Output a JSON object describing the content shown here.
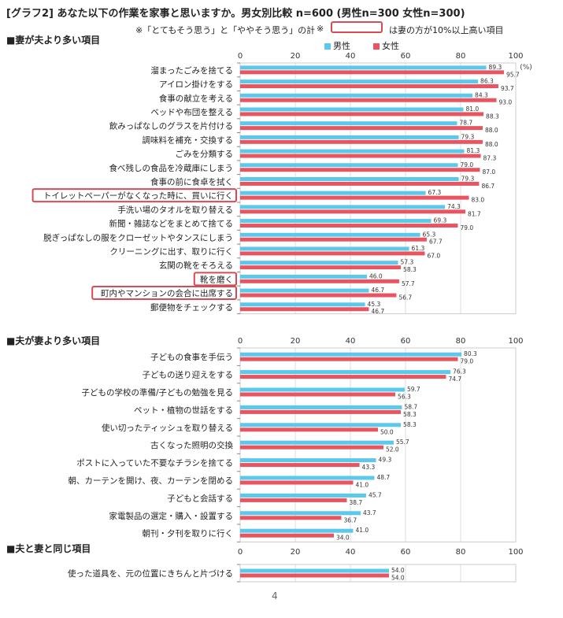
{
  "title": "[グラフ2] あなた以下の作業を家事と思いますか。男女別比較 n=600 (男性n=300 女性n=300)",
  "subtitle": "※「とてもそう思う」と「ややそう思う」の計",
  "note_mark": "※",
  "note_text": "は妻の方が10%以上高い項目",
  "legend": {
    "male": "男性",
    "female": "女性"
  },
  "unit": "(%)",
  "page_number": "4",
  "colors": {
    "male": "#5bc8ec",
    "female": "#e85560",
    "highlight": "#d94a55"
  },
  "chart_data": [
    {
      "type": "bar",
      "title": "■妻が夫より多い項目",
      "xlim": [
        0,
        100
      ],
      "ticks": [
        0,
        20,
        40,
        60,
        80,
        100
      ],
      "categories": [
        "溜まったごみを捨てる",
        "アイロン掛けをする",
        "食事の献立を考える",
        "ベッドや布団を整える",
        "飲みっぱなしのグラスを片付ける",
        "調味料を補充・交換する",
        "ごみを分類する",
        "食べ残しの食品を冷蔵庫にしまう",
        "食事の前に食卓を拭く",
        "トイレットペーパーがなくなった時に、買いに行く",
        "手洗い場のタオルを取り替える",
        "新聞・雑誌などをまとめて捨てる",
        "脱ぎっぱなしの服をクローゼットやタンスにしまう",
        "クリーニングに出す、取りに行く",
        "玄関の靴をそろえる",
        "靴を磨く",
        "町内やマンションの会合に出席する",
        "郵便物をチェックする"
      ],
      "highlighted": [
        "トイレットペーパーがなくなった時に、買いに行く",
        "靴を磨く",
        "町内やマンションの会合に出席する"
      ],
      "series": [
        {
          "name": "男性",
          "values": [
            89.3,
            86.3,
            84.3,
            81.0,
            78.7,
            79.3,
            81.3,
            79.0,
            79.3,
            67.3,
            74.3,
            69.3,
            65.3,
            61.3,
            57.3,
            46.0,
            46.7,
            45.3
          ]
        },
        {
          "name": "女性",
          "values": [
            95.7,
            93.7,
            93.0,
            88.3,
            88.0,
            88.0,
            87.3,
            87.0,
            86.7,
            83.0,
            81.7,
            79.0,
            67.7,
            67.0,
            58.3,
            57.7,
            56.7,
            46.7
          ]
        }
      ]
    },
    {
      "type": "bar",
      "title": "■夫が妻より多い項目",
      "xlim": [
        0,
        100
      ],
      "ticks": [
        0,
        20,
        40,
        60,
        80,
        100
      ],
      "categories": [
        "子どもの食事を手伝う",
        "子どもの送り迎えをする",
        "子どもの学校の準備/子どもの勉強を見る",
        "ペット・植物の世話をする",
        "使い切ったティッシュを取り替える",
        "古くなった照明の交換",
        "ポストに入っていた不要なチラシを捨てる",
        "朝、カーテンを開け、夜、カーテンを閉める",
        "子どもと会話する",
        "家電製品の選定・購入・設置する",
        "朝刊・夕刊を取りに行く"
      ],
      "highlighted": [],
      "series": [
        {
          "name": "男性",
          "values": [
            80.3,
            76.3,
            59.7,
            58.7,
            58.3,
            55.7,
            49.3,
            48.7,
            45.7,
            43.7,
            41.0
          ]
        },
        {
          "name": "女性",
          "values": [
            79.0,
            74.7,
            56.3,
            58.3,
            50.0,
            52.0,
            43.3,
            41.0,
            38.7,
            36.7,
            34.0
          ]
        }
      ]
    },
    {
      "type": "bar",
      "title": "■夫と妻と同じ項目",
      "xlim": [
        0,
        100
      ],
      "ticks": [
        0,
        20,
        40,
        60,
        80,
        100
      ],
      "categories": [
        "使った道具を、元の位置にきちんと片づける"
      ],
      "highlighted": [],
      "series": [
        {
          "name": "男性",
          "values": [
            54.0
          ]
        },
        {
          "name": "女性",
          "values": [
            54.0
          ]
        }
      ]
    }
  ]
}
